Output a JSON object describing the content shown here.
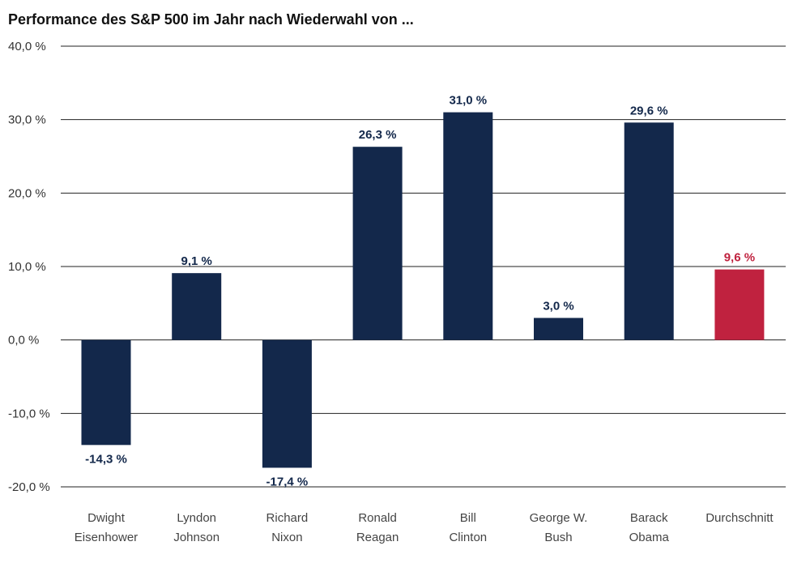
{
  "chart_data": {
    "type": "bar",
    "title": "Performance des S&P 500 im Jahr nach Wiederwahl von ...",
    "xlabel": "",
    "ylabel": "",
    "ylim": [
      -20,
      40
    ],
    "yticks": [
      40,
      30,
      20,
      10,
      0,
      -10,
      -20
    ],
    "ytick_labels": [
      "40,0 %",
      "30,0 %",
      "20,0 %",
      "10,0 %",
      "0,0 %",
      "-10,0 %",
      "-20,0 %"
    ],
    "grid": true,
    "categories": [
      [
        "Dwight",
        "Eisenhower"
      ],
      [
        "Lyndon",
        "Johnson"
      ],
      [
        "Richard",
        "Nixon"
      ],
      [
        "Ronald",
        "Reagan"
      ],
      [
        "Bill",
        "Clinton"
      ],
      [
        "George W.",
        "Bush"
      ],
      [
        "Barack",
        "Obama"
      ],
      [
        "Durchschnitt"
      ]
    ],
    "values": [
      -14.3,
      9.1,
      -17.4,
      26.3,
      31.0,
      3.0,
      29.6,
      9.6
    ],
    "value_labels": [
      "-14,3 %",
      "9,1 %",
      "-17,4 %",
      "26,3 %",
      "31,0 %",
      "3,0 %",
      "29,6 %",
      "9,6 %"
    ],
    "colors": [
      "#13284b",
      "#13284b",
      "#13284b",
      "#13284b",
      "#13284b",
      "#13284b",
      "#13284b",
      "#c0223f"
    ]
  }
}
